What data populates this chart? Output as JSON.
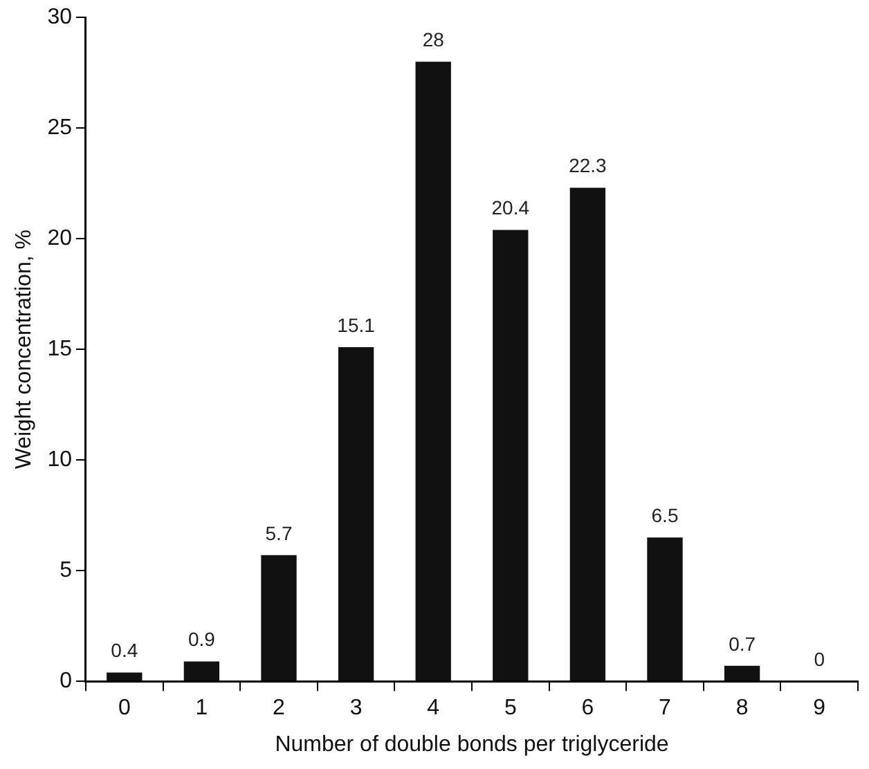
{
  "chart_data": {
    "type": "bar",
    "xlabel": "Number of double bonds per triglyceride",
    "ylabel": "Weight concentration, %",
    "categories": [
      "0",
      "1",
      "2",
      "3",
      "4",
      "5",
      "6",
      "7",
      "8",
      "9"
    ],
    "values": [
      0.4,
      0.9,
      5.7,
      15.1,
      28,
      20.4,
      22.3,
      6.5,
      0.7,
      0
    ],
    "color": "#111111",
    "ylim": [
      0,
      30
    ],
    "yticks": [
      0,
      5,
      10,
      15,
      20,
      25,
      30
    ],
    "grid": false,
    "legend": false,
    "data_labels": true
  }
}
